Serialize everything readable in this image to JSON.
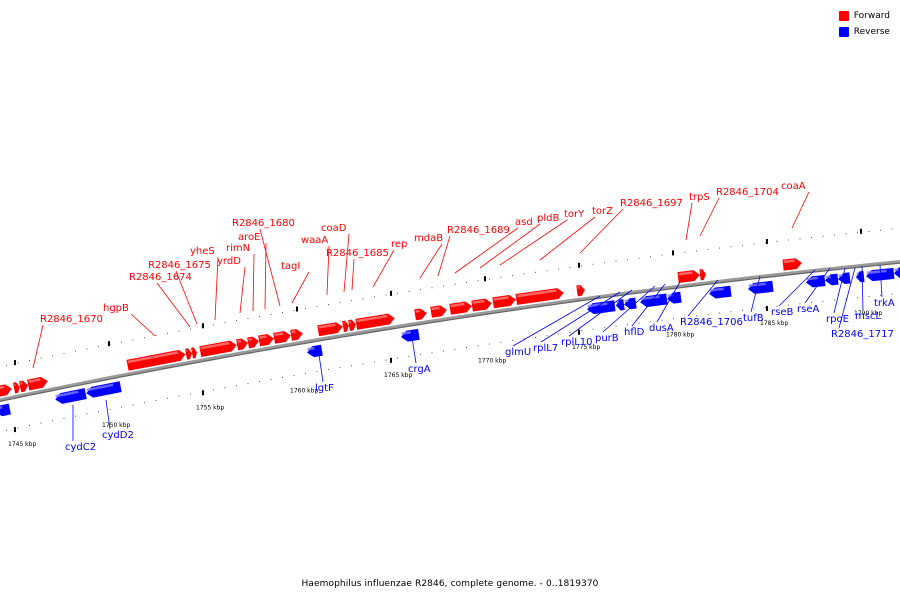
{
  "colors": {
    "forward": "#ff0000",
    "reverse": "#0000ff",
    "backbone": "#999999",
    "tick": "#000000"
  },
  "legend": [
    {
      "label": "Forward",
      "color": "#ff0000"
    },
    {
      "label": "Reverse",
      "color": "#0000ff"
    }
  ],
  "caption": "Haemophilus influenzae R2846, complete genome. - 0..1819370",
  "scale_labels": [
    "1745 kbp",
    "1750 kbp",
    "1755 kbp",
    "1760 kbp",
    "1765 kbp",
    "1770 kbp",
    "1775 kbp",
    "1780 kbp",
    "1785 kbp",
    "1790 kbp"
  ],
  "forward_genes": [
    "R2846_1670",
    "hgpB",
    "R2846_1674",
    "R2846_1675",
    "yheS",
    "yrdD",
    "rimN",
    "aroE",
    "R2846_1680",
    "tagI",
    "waaA",
    "coaD",
    "R2846_1685",
    "rep",
    "mdaB",
    "R2846_1689",
    "asd",
    "pldB",
    "torY",
    "torZ",
    "R2846_1697",
    "trpS",
    "R2846_1704",
    "coaA"
  ],
  "reverse_genes": [
    "cydC2",
    "cydD2",
    "lgtF",
    "crgA",
    "glmU",
    "rplL7",
    "rplL10",
    "purB",
    "hflD",
    "dusA",
    "R2846_1706",
    "tufB",
    "rseB",
    "rseA",
    "rpoE",
    "R2846_1717",
    "mscL",
    "trkA"
  ]
}
